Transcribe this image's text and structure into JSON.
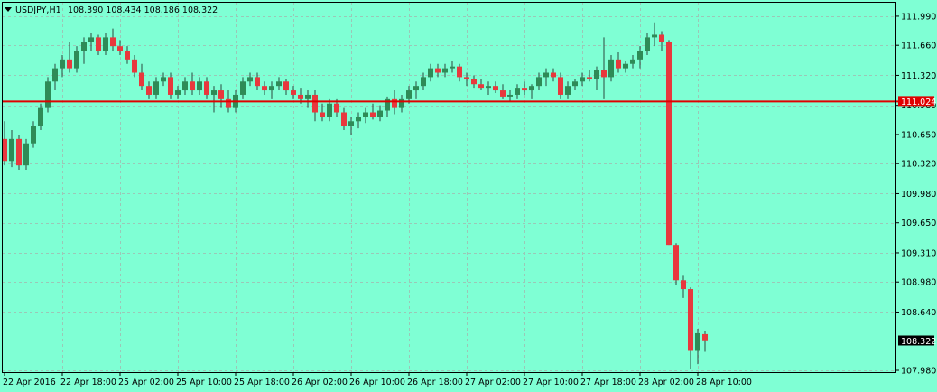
{
  "header": {
    "menu_icon": "triangle-down-icon",
    "symbol": "USDJPY,H1",
    "ohlc": "108.390 108.434 108.186 108.322"
  },
  "colors": {
    "background": "#7fffd4",
    "grid": "#9bc7b7",
    "bull": "#2e8b57",
    "bear": "#e8383d",
    "wick": "#2b4a3e",
    "hline": "#e00000",
    "bid_line": "#ffb0b0",
    "axis": "#000000"
  },
  "chart_data": {
    "type": "candlestick",
    "title": "USDJPY,H1",
    "ylim": [
      107.98,
      112.02
    ],
    "y_ticks": [
      "111.990",
      "111.660",
      "111.320",
      "110.980",
      "110.650",
      "110.320",
      "109.980",
      "109.650",
      "109.310",
      "108.980",
      "108.640",
      "108.322",
      "107.980"
    ],
    "x_ticks": [
      "22 Apr 2016",
      "22 Apr 18:00",
      "25 Apr 02:00",
      "25 Apr 10:00",
      "25 Apr 18:00",
      "26 Apr 02:00",
      "26 Apr 10:00",
      "26 Apr 18:00",
      "27 Apr 02:00",
      "27 Apr 10:00",
      "27 Apr 18:00",
      "28 Apr 02:00",
      "28 Apr 10:00"
    ],
    "x_tick_index": [
      0,
      8,
      16,
      24,
      32,
      40,
      48,
      56,
      64,
      72,
      80,
      88,
      96
    ],
    "horizontal_line": {
      "value": 111.024,
      "label": "111.024"
    },
    "bid_line": {
      "value": 108.322,
      "label": "108.322"
    },
    "grid": true,
    "candles": [
      [
        110.6,
        110.8,
        110.3,
        110.35
      ],
      [
        110.35,
        110.7,
        110.28,
        110.6
      ],
      [
        110.6,
        110.65,
        110.25,
        110.3
      ],
      [
        110.3,
        110.6,
        110.25,
        110.55
      ],
      [
        110.55,
        110.8,
        110.5,
        110.75
      ],
      [
        110.75,
        111.0,
        110.7,
        110.95
      ],
      [
        110.95,
        111.3,
        110.9,
        111.25
      ],
      [
        111.25,
        111.45,
        111.15,
        111.4
      ],
      [
        111.4,
        111.55,
        111.3,
        111.5
      ],
      [
        111.5,
        111.7,
        111.35,
        111.4
      ],
      [
        111.4,
        111.65,
        111.35,
        111.6
      ],
      [
        111.6,
        111.75,
        111.45,
        111.7
      ],
      [
        111.7,
        111.8,
        111.6,
        111.75
      ],
      [
        111.75,
        111.78,
        111.55,
        111.6
      ],
      [
        111.6,
        111.8,
        111.55,
        111.75
      ],
      [
        111.75,
        111.85,
        111.6,
        111.65
      ],
      [
        111.65,
        111.72,
        111.55,
        111.6
      ],
      [
        111.6,
        111.65,
        111.45,
        111.5
      ],
      [
        111.5,
        111.55,
        111.3,
        111.35
      ],
      [
        111.35,
        111.45,
        111.15,
        111.2
      ],
      [
        111.2,
        111.25,
        111.05,
        111.1
      ],
      [
        111.1,
        111.3,
        111.05,
        111.25
      ],
      [
        111.25,
        111.35,
        111.2,
        111.3
      ],
      [
        111.3,
        111.35,
        111.05,
        111.1
      ],
      [
        111.1,
        111.2,
        111.05,
        111.15
      ],
      [
        111.15,
        111.3,
        111.1,
        111.25
      ],
      [
        111.25,
        111.35,
        111.1,
        111.15
      ],
      [
        111.15,
        111.3,
        111.1,
        111.25
      ],
      [
        111.25,
        111.3,
        111.05,
        111.1
      ],
      [
        111.1,
        111.2,
        110.9,
        111.15
      ],
      [
        111.15,
        111.22,
        110.95,
        111.05
      ],
      [
        111.05,
        111.15,
        110.9,
        110.95
      ],
      [
        110.95,
        111.15,
        110.9,
        111.1
      ],
      [
        111.1,
        111.3,
        111.05,
        111.25
      ],
      [
        111.25,
        111.35,
        111.2,
        111.3
      ],
      [
        111.3,
        111.35,
        111.15,
        111.2
      ],
      [
        111.2,
        111.25,
        111.1,
        111.15
      ],
      [
        111.15,
        111.25,
        111.05,
        111.2
      ],
      [
        111.2,
        111.3,
        111.15,
        111.25
      ],
      [
        111.25,
        111.28,
        111.1,
        111.15
      ],
      [
        111.15,
        111.2,
        111.05,
        111.1
      ],
      [
        111.1,
        111.18,
        111.0,
        111.05
      ],
      [
        111.05,
        111.15,
        110.95,
        111.1
      ],
      [
        111.1,
        111.15,
        110.8,
        110.9
      ],
      [
        110.9,
        111.0,
        110.8,
        110.85
      ],
      [
        110.85,
        111.05,
        110.8,
        111.0
      ],
      [
        111.0,
        111.05,
        110.85,
        110.9
      ],
      [
        110.9,
        110.95,
        110.7,
        110.75
      ],
      [
        110.75,
        110.85,
        110.65,
        110.8
      ],
      [
        110.8,
        110.9,
        110.72,
        110.85
      ],
      [
        110.85,
        110.95,
        110.78,
        110.9
      ],
      [
        110.9,
        111.0,
        110.82,
        110.85
      ],
      [
        110.85,
        110.98,
        110.8,
        110.92
      ],
      [
        110.92,
        111.08,
        110.85,
        111.05
      ],
      [
        111.05,
        111.15,
        110.88,
        110.95
      ],
      [
        110.95,
        111.1,
        110.9,
        111.05
      ],
      [
        111.05,
        111.2,
        111.0,
        111.15
      ],
      [
        111.15,
        111.25,
        111.05,
        111.2
      ],
      [
        111.2,
        111.35,
        111.15,
        111.3
      ],
      [
        111.3,
        111.45,
        111.25,
        111.4
      ],
      [
        111.4,
        111.45,
        111.3,
        111.35
      ],
      [
        111.35,
        111.45,
        111.3,
        111.4
      ],
      [
        111.4,
        111.48,
        111.35,
        111.42
      ],
      [
        111.42,
        111.45,
        111.25,
        111.3
      ],
      [
        111.3,
        111.35,
        111.2,
        111.28
      ],
      [
        111.28,
        111.32,
        111.18,
        111.22
      ],
      [
        111.22,
        111.28,
        111.15,
        111.18
      ],
      [
        111.18,
        111.25,
        111.1,
        111.2
      ],
      [
        111.2,
        111.25,
        111.12,
        111.15
      ],
      [
        111.15,
        111.22,
        111.05,
        111.08
      ],
      [
        111.08,
        111.15,
        111.02,
        111.1
      ],
      [
        111.1,
        111.22,
        111.05,
        111.18
      ],
      [
        111.18,
        111.25,
        111.1,
        111.15
      ],
      [
        111.15,
        111.22,
        111.05,
        111.2
      ],
      [
        111.2,
        111.35,
        111.15,
        111.3
      ],
      [
        111.3,
        111.4,
        111.2,
        111.35
      ],
      [
        111.35,
        111.4,
        111.25,
        111.3
      ],
      [
        111.3,
        111.35,
        111.05,
        111.1
      ],
      [
        111.1,
        111.25,
        111.05,
        111.2
      ],
      [
        111.2,
        111.28,
        111.15,
        111.25
      ],
      [
        111.25,
        111.35,
        111.2,
        111.3
      ],
      [
        111.3,
        111.38,
        111.25,
        111.28
      ],
      [
        111.28,
        111.42,
        111.15,
        111.38
      ],
      [
        111.38,
        111.75,
        111.05,
        111.3
      ],
      [
        111.3,
        111.55,
        111.25,
        111.5
      ],
      [
        111.5,
        111.58,
        111.35,
        111.4
      ],
      [
        111.4,
        111.48,
        111.35,
        111.45
      ],
      [
        111.45,
        111.55,
        111.4,
        111.5
      ],
      [
        111.5,
        111.65,
        111.4,
        111.6
      ],
      [
        111.6,
        111.8,
        111.55,
        111.75
      ],
      [
        111.75,
        111.92,
        111.65,
        111.78
      ],
      [
        111.78,
        111.82,
        111.6,
        111.7
      ],
      [
        111.7,
        111.72,
        109.4,
        109.4
      ],
      [
        109.4,
        109.42,
        108.95,
        109.0
      ],
      [
        109.0,
        109.05,
        108.8,
        108.9
      ],
      [
        108.9,
        108.92,
        108.0,
        108.2
      ],
      [
        108.2,
        108.45,
        108.05,
        108.4
      ],
      [
        108.39,
        108.43,
        108.19,
        108.32
      ]
    ]
  }
}
